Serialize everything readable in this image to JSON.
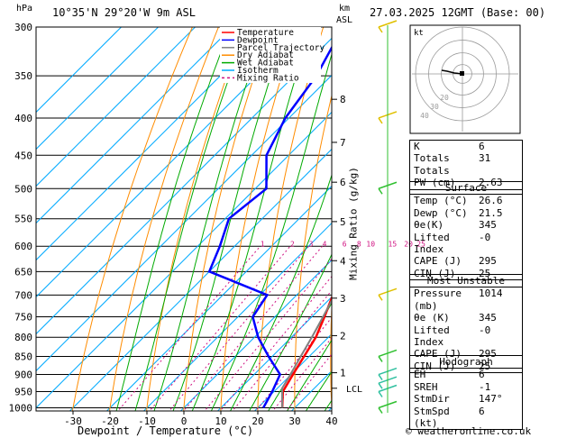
{
  "header": {
    "hpa_label": "hPa",
    "location": "10°35'N  29°20'W  9m  ASL",
    "km_label": "km",
    "asl_label": "ASL",
    "datetime": "27.03.2025  12GMT  (Base: 00)"
  },
  "chart_data": {
    "type": "line",
    "pressure_levels": [
      300,
      350,
      400,
      450,
      500,
      550,
      600,
      650,
      700,
      750,
      800,
      850,
      900,
      950,
      1000
    ],
    "pressure_range": [
      300,
      1010
    ],
    "temp_range": [
      -40,
      40
    ],
    "temp_ticks": [
      -30,
      -20,
      -10,
      0,
      10,
      20,
      30,
      40
    ],
    "xlabel": "Dewpoint / Temperature (°C)",
    "ylabel_right": "Mixing Ratio (g/kg)",
    "legend": [
      {
        "name": "Temperature",
        "color": "#ff0000",
        "dash": "none"
      },
      {
        "name": "Dewpoint",
        "color": "#0000ff",
        "dash": "none"
      },
      {
        "name": "Parcel Trajectory",
        "color": "#808080",
        "dash": "none"
      },
      {
        "name": "Dry Adiabat",
        "color": "#ff8c00",
        "dash": "none"
      },
      {
        "name": "Wet Adiabat",
        "color": "#00aa00",
        "dash": "none"
      },
      {
        "name": "Isotherm",
        "color": "#00aaff",
        "dash": "none"
      },
      {
        "name": "Mixing Ratio",
        "color": "#d01080",
        "dash": "3,3"
      }
    ],
    "series": [
      {
        "name": "Temperature",
        "color": "#ff0000",
        "points": [
          [
            1000,
            26.6
          ],
          [
            950,
            22.4
          ],
          [
            900,
            20.5
          ],
          [
            850,
            18.6
          ],
          [
            800,
            16.6
          ],
          [
            750,
            13.4
          ],
          [
            700,
            9.8
          ],
          [
            650,
            7.6
          ],
          [
            600,
            4.4
          ],
          [
            550,
            0.2
          ],
          [
            500,
            -4.2
          ],
          [
            450,
            -9.8
          ],
          [
            400,
            -15.6
          ],
          [
            370,
            -20.5
          ],
          [
            350,
            -24.5
          ],
          [
            300,
            -33.0
          ]
        ]
      },
      {
        "name": "Dewpoint",
        "color": "#0000ff",
        "points": [
          [
            1000,
            21.5
          ],
          [
            950,
            19.5
          ],
          [
            900,
            17.0
          ],
          [
            850,
            9.0
          ],
          [
            800,
            1.0
          ],
          [
            750,
            -6.0
          ],
          [
            700,
            -8.0
          ],
          [
            650,
            -30.0
          ],
          [
            600,
            -34.0
          ],
          [
            550,
            -39.0
          ],
          [
            500,
            -37.0
          ],
          [
            450,
            -46.0
          ],
          [
            400,
            -51.0
          ],
          [
            350,
            -54.0
          ],
          [
            300,
            -60.0
          ]
        ]
      },
      {
        "name": "Parcel Trajectory",
        "color": "#808080",
        "points": [
          [
            1000,
            26.6
          ],
          [
            940,
            21.3
          ],
          [
            900,
            19.8
          ],
          [
            850,
            17.7
          ],
          [
            800,
            15.5
          ],
          [
            750,
            13.0
          ],
          [
            700,
            10.3
          ],
          [
            650,
            7.3
          ],
          [
            600,
            3.9
          ],
          [
            550,
            0.0
          ],
          [
            500,
            -4.6
          ],
          [
            450,
            -10.0
          ],
          [
            400,
            -16.4
          ],
          [
            370,
            -21.0
          ]
        ]
      }
    ],
    "km_ticks": [
      {
        "km": "1",
        "p": 895
      },
      {
        "km": "2",
        "p": 796
      },
      {
        "km": "3",
        "p": 707
      },
      {
        "km": "4",
        "p": 628
      },
      {
        "km": "5",
        "p": 555
      },
      {
        "km": "6",
        "p": 490
      },
      {
        "km": "7",
        "p": 432
      },
      {
        "km": "8",
        "p": 377
      }
    ],
    "lcl_label": "LCL",
    "lcl_p": 940,
    "mixing_ratios": [
      "1",
      "2",
      "3",
      "4",
      "6",
      "8",
      "10",
      "15",
      "20",
      "25"
    ],
    "mixing_ratio_label_p": 595,
    "wind_barbs": [
      {
        "p": 300,
        "color": "#e0c000"
      },
      {
        "p": 400,
        "color": "#e0c000"
      },
      {
        "p": 500,
        "color": "#30c030"
      },
      {
        "p": 700,
        "color": "#e0c000"
      },
      {
        "p": 850,
        "color": "#30c030"
      },
      {
        "p": 900,
        "color": "#30c0a0"
      },
      {
        "p": 925,
        "color": "#30c0a0"
      },
      {
        "p": 950,
        "color": "#30c0a0"
      },
      {
        "p": 1000,
        "color": "#30c030"
      }
    ]
  },
  "hodograph": {
    "unit_label": "kt",
    "ring_labels": [
      "40",
      "30",
      "20"
    ]
  },
  "indices": [
    {
      "label": "K",
      "value": "6"
    },
    {
      "label": "Totals Totals",
      "value": "31"
    },
    {
      "label": "PW (cm)",
      "value": "2.63"
    }
  ],
  "surface": {
    "title": "Surface",
    "rows": [
      {
        "label": "Temp (°C)",
        "value": "26.6"
      },
      {
        "label": "Dewp (°C)",
        "value": "21.5"
      },
      {
        "label": "θe(K)",
        "value": "345"
      },
      {
        "label": "Lifted Index",
        "value": "-0"
      },
      {
        "label": "CAPE (J)",
        "value": "295"
      },
      {
        "label": "CIN (J)",
        "value": "25"
      }
    ]
  },
  "most_unstable": {
    "title": "Most Unstable",
    "rows": [
      {
        "label": "Pressure (mb)",
        "value": "1014"
      },
      {
        "label": "θe (K)",
        "value": "345"
      },
      {
        "label": "Lifted Index",
        "value": "-0"
      },
      {
        "label": "CAPE (J)",
        "value": "295"
      },
      {
        "label": "CIN (J)",
        "value": "25"
      }
    ]
  },
  "hodo_stats": {
    "title": "Hodograph",
    "rows": [
      {
        "label": "EH",
        "value": "6"
      },
      {
        "label": "SREH",
        "value": "-1"
      },
      {
        "label": "StmDir",
        "value": "147°"
      },
      {
        "label": "StmSpd (kt)",
        "value": "6"
      }
    ]
  },
  "footer": {
    "copyright": "© weatheronline.co.uk"
  }
}
